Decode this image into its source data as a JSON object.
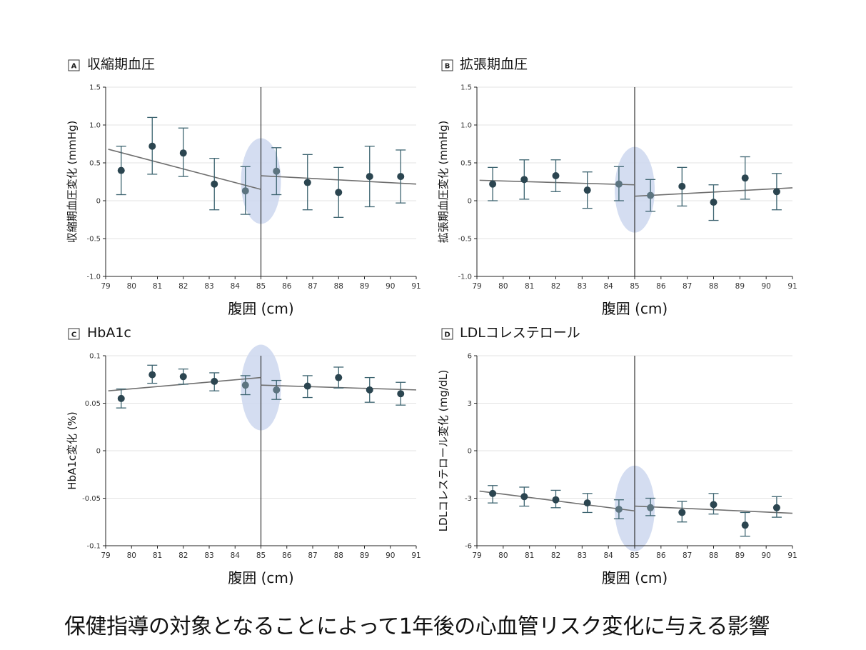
{
  "figure_caption": "保健指導の対象となることによって1年後の心血管リスク変化に与える影響",
  "colors": {
    "point": "#2b4550",
    "point_faded": "#5c7480",
    "errorbar": "#3d6470",
    "line": "#6f6f6f",
    "highlight": "#ccd7ee",
    "grid": "#e3e3e3",
    "axis": "#222222"
  },
  "chart_data": [
    {
      "type": "scatter",
      "panel": "A",
      "title": "収縮期血圧",
      "xlabel": "腹囲 (cm)",
      "ylabel": "収縮期血圧変化 (mmHg)",
      "xlim": [
        79,
        91
      ],
      "ylim": [
        -1.0,
        1.5
      ],
      "xticks": [
        "79",
        "80",
        "81",
        "82",
        "83",
        "84",
        "85",
        "86",
        "87",
        "88",
        "89",
        "90",
        "91"
      ],
      "yticks": [
        "1.5",
        "1.0",
        "0.5",
        "0",
        "-0.5",
        "-1.0"
      ],
      "ytick_values": [
        1.5,
        1.0,
        0.5,
        0,
        -0.5,
        -1.0
      ],
      "cutoff_x": 85,
      "grid": true,
      "points": [
        {
          "x": 79.6,
          "y": 0.4,
          "lo": 0.08,
          "hi": 0.72
        },
        {
          "x": 80.8,
          "y": 0.72,
          "lo": 0.35,
          "hi": 1.1
        },
        {
          "x": 82.0,
          "y": 0.63,
          "lo": 0.32,
          "hi": 0.96
        },
        {
          "x": 83.2,
          "y": 0.22,
          "lo": -0.12,
          "hi": 0.56
        },
        {
          "x": 84.4,
          "y": 0.13,
          "lo": -0.18,
          "hi": 0.45
        },
        {
          "x": 85.6,
          "y": 0.39,
          "lo": 0.08,
          "hi": 0.7
        },
        {
          "x": 86.8,
          "y": 0.24,
          "lo": -0.12,
          "hi": 0.61
        },
        {
          "x": 88.0,
          "y": 0.11,
          "lo": -0.22,
          "hi": 0.44
        },
        {
          "x": 89.2,
          "y": 0.32,
          "lo": -0.08,
          "hi": 0.72
        },
        {
          "x": 90.4,
          "y": 0.32,
          "lo": -0.03,
          "hi": 0.67
        }
      ],
      "fit_left": [
        [
          79.1,
          0.68
        ],
        [
          85.0,
          0.15
        ]
      ],
      "fit_right": [
        [
          85.0,
          0.33
        ],
        [
          91.0,
          0.22
        ]
      ]
    },
    {
      "type": "scatter",
      "panel": "B",
      "title": "拡張期血圧",
      "xlabel": "腹囲 (cm)",
      "ylabel": "拡張期血圧変化 (mmHg)",
      "xlim": [
        79,
        91
      ],
      "ylim": [
        -1.0,
        1.5
      ],
      "xticks": [
        "79",
        "80",
        "81",
        "82",
        "83",
        "84",
        "85",
        "86",
        "87",
        "88",
        "89",
        "90",
        "91"
      ],
      "yticks": [
        "1.5",
        "1.0",
        "0.5",
        "0",
        "-0.5",
        "-1.0"
      ],
      "ytick_values": [
        1.5,
        1.0,
        0.5,
        0,
        -0.5,
        -1.0
      ],
      "cutoff_x": 85,
      "grid": true,
      "points": [
        {
          "x": 79.6,
          "y": 0.22,
          "lo": 0.0,
          "hi": 0.44
        },
        {
          "x": 80.8,
          "y": 0.28,
          "lo": 0.02,
          "hi": 0.54
        },
        {
          "x": 82.0,
          "y": 0.33,
          "lo": 0.12,
          "hi": 0.54
        },
        {
          "x": 83.2,
          "y": 0.14,
          "lo": -0.1,
          "hi": 0.38
        },
        {
          "x": 84.4,
          "y": 0.22,
          "lo": 0.0,
          "hi": 0.45
        },
        {
          "x": 85.6,
          "y": 0.07,
          "lo": -0.14,
          "hi": 0.28
        },
        {
          "x": 86.8,
          "y": 0.19,
          "lo": -0.07,
          "hi": 0.44
        },
        {
          "x": 88.0,
          "y": -0.02,
          "lo": -0.26,
          "hi": 0.21
        },
        {
          "x": 89.2,
          "y": 0.3,
          "lo": 0.02,
          "hi": 0.58
        },
        {
          "x": 90.4,
          "y": 0.12,
          "lo": -0.12,
          "hi": 0.36
        }
      ],
      "fit_left": [
        [
          79.1,
          0.27
        ],
        [
          85.0,
          0.21
        ]
      ],
      "fit_right": [
        [
          85.0,
          0.06
        ],
        [
          91.0,
          0.17
        ]
      ]
    },
    {
      "type": "scatter",
      "panel": "C",
      "title": "HbA1c",
      "xlabel": "腹囲 (cm)",
      "ylabel": "HbA1c変化 (%)",
      "xlim": [
        79,
        91
      ],
      "ylim": [
        -0.1,
        0.1
      ],
      "xticks": [
        "79",
        "80",
        "81",
        "82",
        "83",
        "84",
        "85",
        "86",
        "87",
        "88",
        "89",
        "90",
        "91"
      ],
      "yticks": [
        "0.1",
        "0.05",
        "0",
        "-0.05",
        "-0.1"
      ],
      "ytick_values": [
        0.1,
        0.05,
        0,
        -0.05,
        -0.1
      ],
      "cutoff_x": 85,
      "grid": true,
      "points": [
        {
          "x": 79.6,
          "y": 0.055,
          "lo": 0.045,
          "hi": 0.065
        },
        {
          "x": 80.8,
          "y": 0.08,
          "lo": 0.071,
          "hi": 0.09
        },
        {
          "x": 82.0,
          "y": 0.078,
          "lo": 0.07,
          "hi": 0.086
        },
        {
          "x": 83.2,
          "y": 0.073,
          "lo": 0.063,
          "hi": 0.082
        },
        {
          "x": 84.4,
          "y": 0.069,
          "lo": 0.059,
          "hi": 0.079
        },
        {
          "x": 85.6,
          "y": 0.064,
          "lo": 0.054,
          "hi": 0.074
        },
        {
          "x": 86.8,
          "y": 0.068,
          "lo": 0.056,
          "hi": 0.079
        },
        {
          "x": 88.0,
          "y": 0.077,
          "lo": 0.066,
          "hi": 0.088
        },
        {
          "x": 89.2,
          "y": 0.064,
          "lo": 0.051,
          "hi": 0.077
        },
        {
          "x": 90.4,
          "y": 0.06,
          "lo": 0.048,
          "hi": 0.072
        }
      ],
      "fit_left": [
        [
          79.1,
          0.063
        ],
        [
          85.0,
          0.077
        ]
      ],
      "fit_right": [
        [
          85.0,
          0.069
        ],
        [
          91.0,
          0.064
        ]
      ]
    },
    {
      "type": "scatter",
      "panel": "D",
      "title": "LDLコレステロール",
      "xlabel": "腹囲 (cm)",
      "ylabel": "LDLコレステロール変化 (mg/dL)",
      "xlim": [
        79,
        91
      ],
      "ylim": [
        -6,
        6
      ],
      "xticks": [
        "79",
        "80",
        "81",
        "82",
        "83",
        "84",
        "85",
        "86",
        "87",
        "88",
        "89",
        "90",
        "91"
      ],
      "yticks": [
        "6",
        "3",
        "0",
        "-3",
        "-6"
      ],
      "ytick_values": [
        6,
        3,
        0,
        -3,
        -6
      ],
      "cutoff_x": 85,
      "grid": true,
      "points": [
        {
          "x": 79.6,
          "y": -2.7,
          "lo": -3.3,
          "hi": -2.2
        },
        {
          "x": 80.8,
          "y": -2.9,
          "lo": -3.5,
          "hi": -2.3
        },
        {
          "x": 82.0,
          "y": -3.1,
          "lo": -3.6,
          "hi": -2.5
        },
        {
          "x": 83.2,
          "y": -3.3,
          "lo": -3.9,
          "hi": -2.7
        },
        {
          "x": 84.4,
          "y": -3.7,
          "lo": -4.3,
          "hi": -3.1
        },
        {
          "x": 85.6,
          "y": -3.6,
          "lo": -4.1,
          "hi": -3.0
        },
        {
          "x": 86.8,
          "y": -3.9,
          "lo": -4.5,
          "hi": -3.2
        },
        {
          "x": 88.0,
          "y": -3.4,
          "lo": -4.0,
          "hi": -2.7
        },
        {
          "x": 89.2,
          "y": -4.7,
          "lo": -5.4,
          "hi": -3.9
        },
        {
          "x": 90.4,
          "y": -3.6,
          "lo": -4.2,
          "hi": -2.9
        }
      ],
      "fit_left": [
        [
          79.1,
          -2.55
        ],
        [
          85.0,
          -3.8
        ]
      ],
      "fit_right": [
        [
          85.0,
          -3.5
        ],
        [
          91.0,
          -3.95
        ]
      ]
    }
  ]
}
